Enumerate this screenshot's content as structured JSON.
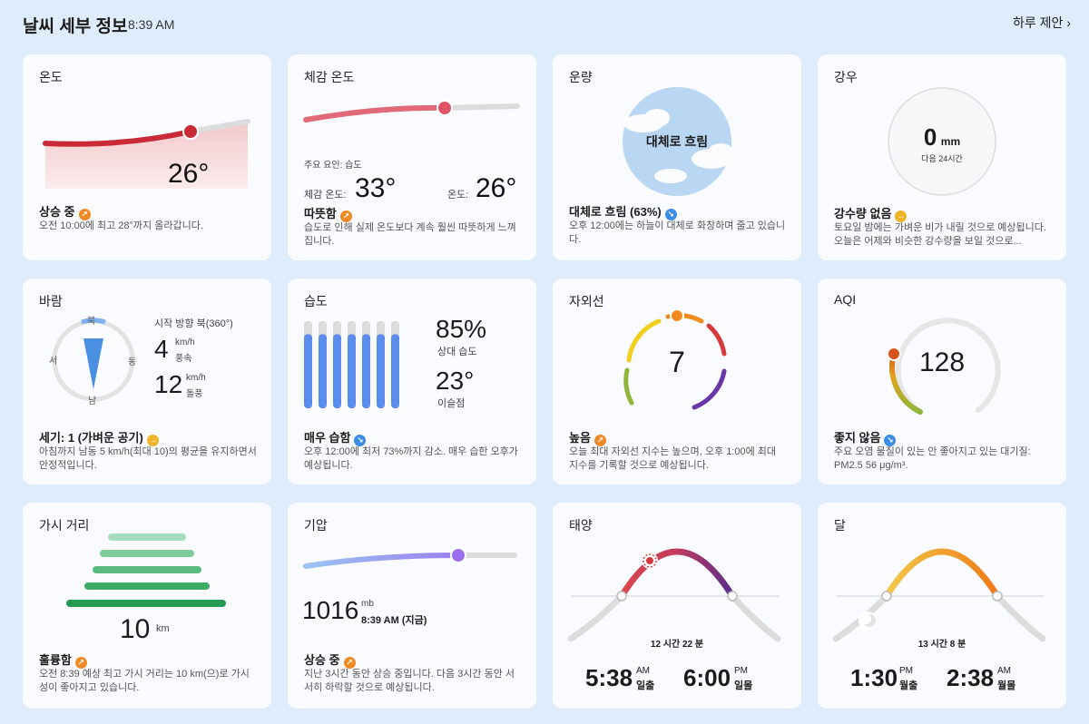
{
  "header": {
    "title": "날씨 세부 정보",
    "time": "8:39 AM",
    "link": "하루 제안 ›"
  },
  "temp": {
    "title": "온도",
    "value": "26°",
    "summary": "상승 중",
    "desc": "오전 10:00에 최고 28°까지 올라갑니다.",
    "trend": "up"
  },
  "feels": {
    "title": "체감 온도",
    "factor": "주요 요인: 습도",
    "feels_label": "체감 온도:",
    "feels_value": "33°",
    "temp_label": "온도:",
    "temp_value": "26°",
    "summary": "따뜻함",
    "desc": "습도로 인해 실제 온도보다 계속 훨씬 따뜻하게 느껴집니다.",
    "trend": "up"
  },
  "cloud": {
    "title": "운량",
    "center": "대체로 흐림",
    "summary": "대체로 흐림 (63%)",
    "desc": "오후 12:00에는 하늘이 대체로 화창하며 줄고 있습니다.",
    "trend": "down"
  },
  "rain": {
    "title": "강우",
    "value": "0",
    "unit": "mm",
    "sub": "다음 24시간",
    "summary": "강수량 없음",
    "desc": "토요일 밤에는 가벼운 비가 내릴 것으로 예상됩니다. 오늘은 어제와 비슷한 강수량을 보일 것으로...",
    "trend": "flat"
  },
  "wind": {
    "title": "바람",
    "n": "북",
    "e": "동",
    "s": "남",
    "w": "서",
    "direction": "시작 방향 북(360°)",
    "speed": "4",
    "speed_unit": "km/h",
    "speed_label": "풍속",
    "gust": "12",
    "gust_unit": "km/h",
    "gust_label": "돌풍",
    "summary": "세기: 1 (가벼운 공기)",
    "desc": "아침까지 남동 5 km/h(최대 10)의 평균을 유지하면서 안정적입니다.",
    "trend": "flat"
  },
  "humidity": {
    "title": "습도",
    "value": "85%",
    "label": "상대 습도",
    "dew": "23°",
    "dew_label": "이슬점",
    "summary": "매우 습함",
    "desc": "오후 12:00에 최저 73%까지 감소. 매우 습한 오후가 예상됩니다.",
    "trend": "down",
    "bars": [
      0.85,
      0.85,
      0.85,
      0.85,
      0.85,
      0.85,
      0.85
    ]
  },
  "uv": {
    "title": "자외선",
    "value": "7",
    "summary": "높음",
    "desc": "오늘 최대 자외선 지수는 높으며, 오후 1:00에 최대 지수를 기록할 것으로 예상됩니다.",
    "trend": "up"
  },
  "aqi": {
    "title": "AQI",
    "value": "128",
    "summary": "좋지 않음",
    "desc": "주요 오염 물질이 있는 안 좋아지고 있는 대기질: PM2.5 56 μg/m³.",
    "trend": "down"
  },
  "visibility": {
    "title": "가시 거리",
    "value": "10",
    "unit": "km",
    "summary": "훌륭함",
    "desc": "오전 8:39 예상 최고 가시 거리는 10 km(으)로 가시성이 좋아지고 있습니다.",
    "trend": "up"
  },
  "pressure": {
    "title": "기압",
    "value": "1016",
    "unit": "mb",
    "time": "8:39 AM (지금)",
    "summary": "상승 중",
    "desc": "지난 3시간 동안 상승 중입니다. 다음 3시간 동안 서서히 하락할 것으로 예상됩니다.",
    "trend": "up"
  },
  "sun": {
    "title": "태양",
    "duration": "12 시간 22 분",
    "rise": "5:38",
    "rise_ampm": "AM",
    "rise_label": "일출",
    "set": "6:00",
    "set_ampm": "PM",
    "set_label": "일몰"
  },
  "moon": {
    "title": "달",
    "duration": "13 시간 8 분",
    "rise": "1:30",
    "rise_ampm": "PM",
    "rise_label": "월출",
    "set": "2:38",
    "set_ampm": "AM",
    "set_label": "월몰"
  },
  "icons": {
    "up": "↗",
    "down": "↘",
    "flat": "→"
  }
}
